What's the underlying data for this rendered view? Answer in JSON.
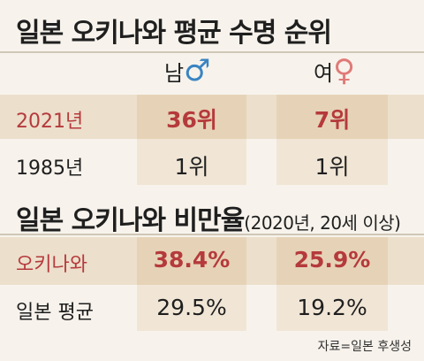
{
  "title_lifespan": "일본 오키나와 평균 수명 순위",
  "columns": {
    "male_label": "남",
    "male_symbol": "♂",
    "female_label": "여",
    "female_symbol": "♀"
  },
  "lifespan_rows": [
    {
      "label": "2021년",
      "male": "36위",
      "female": "7위"
    },
    {
      "label": "1985년",
      "male": "1위",
      "female": "1위"
    }
  ],
  "title_obesity": "일본 오키나와 비만율",
  "title_obesity_note": "(2020년, 20세 이상)",
  "obesity_rows": [
    {
      "label": "오키나와",
      "male": "38.4%",
      "female": "25.9%"
    },
    {
      "label": "일본 평균",
      "male": "29.5%",
      "female": "19.2%"
    }
  ],
  "source": "자료=일본 후생성",
  "colors": {
    "background": "#f7f3ec",
    "highlight_row": "#ecdfcc",
    "highlight_cell": "#e6d3b7",
    "accent_red": "#b53a3c",
    "male_blue": "#3a84c2",
    "female_pink": "#e07a78"
  }
}
